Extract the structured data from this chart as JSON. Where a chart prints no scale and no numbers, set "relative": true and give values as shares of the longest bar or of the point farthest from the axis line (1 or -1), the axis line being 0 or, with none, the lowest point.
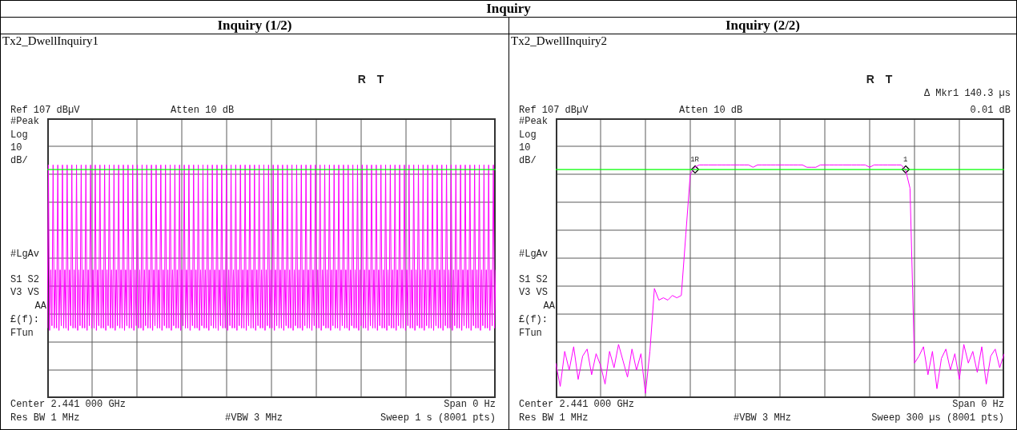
{
  "chart_data": [
    {
      "type": "line",
      "title": "Inquiry (1/2)",
      "subtitle": "Tx2_DwellInquiry1",
      "relative": true,
      "grid": true,
      "legend": false,
      "marker": "none",
      "line_style": "solid",
      "annotations": [
        "R T",
        "Ref 107 dBµV",
        "Atten 10 dB",
        "#Peak",
        "Log",
        "10",
        "dB/",
        "#LgAv",
        "S1 S2",
        "V3 VS",
        "AA",
        "£(f):",
        "FTun",
        "Center 2.441 000 GHz",
        "Span 0 Hz",
        "Res BW 1 MHz",
        "#VBW 3 MHz",
        "Sweep 1 s (8001 pts)",
        "Inquiry"
      ],
      "ref_lines": [
        {
          "axis": "y",
          "value": 0.98,
          "color": "#00ff00"
        }
      ],
      "categories": [
        null,
        null,
        null,
        null,
        null,
        null,
        null,
        null,
        null,
        null,
        null,
        null,
        null,
        null,
        null,
        null,
        null,
        null,
        null,
        null,
        null,
        null,
        null,
        null,
        null,
        null,
        null,
        null,
        null,
        null,
        null,
        null,
        null,
        null,
        null,
        null,
        null,
        null,
        null,
        null,
        null,
        null,
        null,
        null,
        null,
        null,
        null,
        null,
        null,
        null,
        null,
        null,
        null,
        null,
        null,
        null,
        null,
        null,
        null,
        null,
        null,
        null,
        null,
        null,
        null,
        null,
        null,
        null,
        null,
        null,
        null,
        null,
        null,
        null,
        null,
        null,
        null,
        null,
        null,
        null,
        null,
        null,
        null,
        null,
        null,
        null,
        null,
        null,
        null,
        null,
        null,
        null,
        null,
        null,
        null,
        null,
        null,
        null,
        null,
        null,
        null,
        null,
        null,
        null,
        null,
        null,
        null,
        null,
        null,
        null,
        null,
        null,
        null,
        null,
        null,
        null,
        null,
        null,
        null,
        null,
        null,
        null,
        null,
        null,
        null,
        null,
        null,
        null,
        null,
        null,
        null,
        null,
        null,
        null,
        null,
        null,
        null,
        null,
        null,
        null,
        null,
        null,
        null,
        null,
        null,
        null,
        null,
        null,
        null,
        null,
        null,
        null,
        null,
        null,
        null,
        null,
        null,
        null,
        null,
        null,
        null,
        null,
        null,
        null,
        null,
        null,
        null,
        null,
        null,
        null,
        null,
        null,
        null,
        null,
        null,
        null,
        null,
        null,
        null,
        null,
        null,
        null,
        null,
        null,
        null,
        null,
        null,
        null,
        null,
        null,
        null,
        null,
        null,
        null,
        null,
        null,
        null,
        null,
        null,
        null,
        null,
        null,
        null,
        null,
        null,
        null,
        null,
        null,
        null,
        null,
        null,
        null,
        null,
        null,
        null,
        null,
        null,
        null,
        null,
        null,
        null,
        null,
        null,
        null,
        null,
        null,
        null,
        null,
        null,
        null,
        null,
        null,
        null,
        null,
        null,
        null,
        null,
        null,
        null,
        null,
        null,
        null,
        null,
        null,
        null,
        null,
        null,
        null,
        null,
        null,
        null,
        null,
        null,
        null,
        null,
        null,
        null,
        null,
        null,
        null,
        null,
        null,
        null,
        null,
        null,
        null,
        null,
        null,
        null,
        null,
        null,
        null,
        null,
        null,
        null,
        null,
        null,
        null,
        null,
        null,
        null,
        null,
        null,
        null,
        null,
        null,
        null,
        null,
        null,
        null,
        null,
        null,
        null,
        null,
        null,
        null,
        null,
        null,
        null,
        null,
        null,
        null,
        null,
        null,
        null,
        null,
        null,
        null,
        null,
        null,
        null,
        null,
        null,
        null,
        null,
        null,
        null,
        null,
        null,
        null,
        null,
        null,
        null,
        null,
        null,
        null,
        null,
        null,
        null,
        null,
        null,
        null,
        null,
        null,
        null,
        null,
        null,
        null,
        null,
        null,
        null,
        null,
        null,
        null,
        null,
        null,
        null,
        null,
        null,
        null,
        null,
        null,
        null,
        null,
        null,
        null,
        null,
        null,
        null,
        null,
        null,
        null,
        null,
        null,
        null,
        null,
        null,
        null,
        null,
        null,
        null,
        null,
        null,
        null,
        null,
        null,
        null,
        null,
        null,
        null,
        null,
        null,
        null,
        null
      ],
      "series": [
        {
          "color": "#ff00ff",
          "values": [
            0.3,
            1,
            0.29,
            0.55,
            0.31,
            1,
            0.3,
            0.55,
            0.3,
            1,
            0.29,
            0.55,
            0.31,
            1,
            0.3,
            0.55,
            0.3,
            1,
            0.29,
            0.55,
            0.31,
            1,
            0.3,
            0.55,
            0.3,
            1,
            0.29,
            0.55,
            0.31,
            1,
            0.3,
            0.55,
            0.3,
            1,
            0.29,
            0.55,
            0.31,
            1,
            0.3,
            0.55,
            0.3,
            1,
            0.29,
            0.55,
            0.31,
            1,
            0.3,
            0.55,
            0.3,
            1,
            0.29,
            0.55,
            0.31,
            1,
            0.3,
            0.55,
            0.3,
            1,
            0.29,
            0.55,
            0.31,
            1,
            0.3,
            0.55,
            0.3,
            1,
            0.29,
            0.55,
            0.31,
            1,
            0.3,
            0.55,
            0.3,
            1,
            0.29,
            0.55,
            0.31,
            1,
            0.3,
            0.55,
            0.3,
            1,
            0.29,
            0.55,
            0.31,
            1,
            0.3,
            0.55,
            0.3,
            1,
            0.29,
            0.55,
            0.31,
            1,
            0.3,
            0.55,
            0.3,
            1,
            0.29,
            0.55,
            0.31,
            1,
            0.3,
            0.55,
            0.3,
            1,
            0.29,
            0.55,
            0.31,
            1,
            0.3,
            0.55,
            0.3,
            1,
            0.29,
            0.55,
            0.31,
            1,
            0.3,
            0.55,
            0.3,
            1,
            0.29,
            0.55,
            0.31,
            1,
            0.3,
            0.55,
            0.3,
            1,
            0.29,
            0.55,
            0.31,
            1,
            0.3,
            0.55,
            0.3,
            1,
            0.29,
            0.55,
            0.31,
            1,
            0.3,
            0.55,
            0.3,
            1,
            0.29,
            0.55,
            0.31,
            1,
            0.3,
            0.55,
            0.3,
            1,
            0.29,
            0.55,
            0.31,
            1,
            0.3,
            0.55,
            0.3,
            1,
            0.29,
            0.55,
            0.31,
            1,
            0.3,
            0.55,
            0.3,
            1,
            0.29,
            0.55,
            0.31,
            1,
            0.3,
            0.55,
            0.3,
            1,
            0.29,
            0.55,
            0.31,
            1,
            0.3,
            0.55,
            0.3,
            1,
            0.29,
            0.55,
            0.31,
            1,
            0.3,
            0.55,
            0.3,
            1,
            0.29,
            0.55,
            0.31,
            1,
            0.3,
            0.55,
            0.3,
            1,
            0.29,
            0.55,
            0.31,
            1,
            0.3,
            0.55,
            0.3,
            1,
            0.29,
            0.55,
            0.31,
            1,
            0.3,
            0.55,
            0.3,
            1,
            0.29,
            0.55,
            0.31,
            1,
            0.3,
            0.55,
            0.3,
            1,
            0.29,
            0.55,
            0.31,
            1,
            0.3,
            0.55,
            0.3,
            1,
            0.29,
            0.55,
            0.31,
            1,
            0.3,
            0.55,
            0.3,
            1,
            0.29,
            0.55,
            0.31,
            1,
            0.3,
            0.55,
            0.3,
            1,
            0.29,
            0.55,
            0.31,
            1,
            0.3,
            0.55,
            0.3,
            1,
            0.29,
            0.55,
            0.31,
            1,
            0.3,
            0.55,
            0.3,
            1,
            0.29,
            0.55,
            0.31,
            1,
            0.3,
            0.55,
            0.3,
            1,
            0.29,
            0.55,
            0.31,
            1,
            0.3,
            0.55,
            0.3,
            1,
            0.29,
            0.55,
            0.31,
            1,
            0.3,
            0.55,
            0.3,
            1,
            0.29,
            0.55,
            0.31,
            1,
            0.3,
            0.55,
            0.3,
            1,
            0.29,
            0.55,
            0.31,
            1,
            0.3,
            0.55,
            0.3,
            1,
            0.29,
            0.55,
            0.31,
            1,
            0.3,
            0.55,
            0.3,
            1,
            0.29,
            0.55,
            0.31,
            1,
            0.3,
            0.55,
            0.3,
            1,
            0.29,
            0.55,
            0.31,
            1,
            0.3,
            0.55,
            0.3,
            1,
            0.29,
            0.55,
            0.31,
            1,
            0.3,
            0.55,
            0.3,
            1,
            0.29,
            0.55,
            0.31,
            1,
            0.3,
            0.55,
            0.3,
            1,
            0.29,
            0.55,
            0.31,
            1,
            0.3,
            0.55,
            0.3,
            1,
            0.29,
            0.55,
            0.31,
            1,
            0.3,
            0.55,
            0.3,
            1,
            0.29,
            0.55,
            0.31,
            1,
            0.3,
            0.55,
            0.3,
            1,
            0.29,
            0.55,
            0.31,
            1,
            0.3,
            0.55,
            0.3,
            1,
            0.29,
            0.55,
            0.31,
            1,
            0.3,
            0.55
          ]
        }
      ]
    },
    {
      "type": "line",
      "title": "Inquiry (2/2)",
      "subtitle": "Tx2_DwellInquiry2",
      "relative": true,
      "grid": true,
      "legend": false,
      "marker": "none",
      "line_style": "solid",
      "annotations": [
        "R T",
        "Ref 107 dBµV",
        "Atten 10 dB",
        "#Peak",
        "Log",
        "10",
        "dB/",
        "#LgAv",
        "S1 S2",
        "V3 VS",
        "AA",
        "£(f):",
        "FTun",
        "Center 2.441 000 GHz",
        "Span 0 Hz",
        "Res BW 1 MHz",
        "#VBW 3 MHz",
        "Sweep 300 µs (8001 pts)",
        "Δ Mkr1   140.3 µs",
        "0.01 dB",
        {
          "text": "1R",
          "y": 0.98
        },
        {
          "text": "1",
          "y": 0.98
        }
      ],
      "ref_lines": [
        {
          "axis": "y",
          "value": 0.98,
          "color": "#00ff00"
        }
      ],
      "categories": [
        null,
        null,
        null,
        null,
        null,
        null,
        null,
        null,
        null,
        null,
        null,
        null,
        null,
        null,
        null,
        null,
        null,
        null,
        null,
        null,
        null,
        null,
        null,
        null,
        null,
        null,
        null,
        null,
        null,
        null,
        null,
        null,
        null,
        null,
        null,
        null,
        null,
        null,
        null,
        null,
        null,
        null,
        null,
        null,
        null,
        null,
        null,
        null,
        null,
        null,
        null,
        null,
        null,
        null,
        null,
        null,
        null,
        null,
        null,
        null,
        null,
        null,
        null,
        null,
        null,
        null,
        null,
        null,
        null,
        null,
        null,
        null,
        null,
        null,
        null,
        null,
        null,
        null,
        null,
        null,
        null,
        null,
        null,
        null,
        null,
        null,
        null,
        null,
        null,
        null,
        null,
        null,
        null,
        null,
        null,
        null,
        null,
        null,
        null,
        null,
        null
      ],
      "series": [
        {
          "color": "#ff00ff",
          "values": [
            0.15,
            0.05,
            0.2,
            0.12,
            0.22,
            0.08,
            0.18,
            0.21,
            0.1,
            0.19,
            0.14,
            0.06,
            0.2,
            0.13,
            0.23,
            0.16,
            0.09,
            0.21,
            0.12,
            0.19,
            0.02,
            0.2,
            0.47,
            0.42,
            0.43,
            0.42,
            0.44,
            0.43,
            0.44,
            0.7,
            0.96,
            0.99,
            1,
            1,
            1,
            1,
            1,
            1,
            1,
            1,
            1,
            1,
            1,
            1,
            0.99,
            1,
            1,
            1,
            1,
            1,
            1,
            1,
            1,
            1,
            1,
            1,
            0.99,
            0.99,
            0.99,
            1,
            1,
            1,
            1,
            1,
            1,
            1,
            1,
            1,
            1,
            1,
            0.99,
            1,
            1,
            1,
            1,
            1,
            1,
            1,
            0.98,
            0.9,
            0.15,
            0.18,
            0.22,
            0.1,
            0.2,
            0.04,
            0.17,
            0.21,
            0.12,
            0.19,
            0.08,
            0.23,
            0.15,
            0.2,
            0.11,
            0.22,
            0.06,
            0.18,
            0.21,
            0.13,
            0.19
          ]
        }
      ]
    }
  ]
}
